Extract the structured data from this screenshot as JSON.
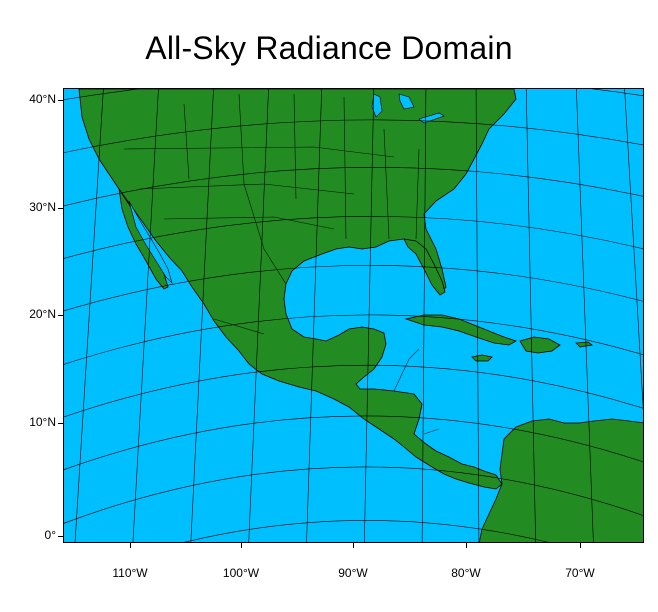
{
  "title": "All-Sky Radiance Domain",
  "colors": {
    "ocean": "#00BFFF",
    "land": "#228B22",
    "coastline": "#000000",
    "grid": "#000000",
    "background": "#FFFFFF"
  },
  "lat_labels": [
    "40°N",
    "30°N",
    "20°N",
    "10°N",
    "0°"
  ],
  "lon_labels": [
    "110°W",
    "100°W",
    "90°W",
    "80°W",
    "70°W"
  ],
  "projection": "lambert-conformal"
}
